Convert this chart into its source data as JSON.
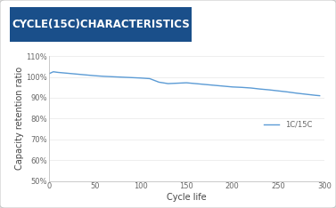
{
  "title": "CYCLE(15C)CHARACTERISTICS",
  "title_bg_color": "#1a4f8a",
  "title_text_color": "#ffffff",
  "xlabel": "Cycle life",
  "ylabel": "Capacity retention ratio",
  "xlim": [
    0,
    300
  ],
  "ylim": [
    0.5,
    1.1
  ],
  "yticks": [
    0.5,
    0.6,
    0.7,
    0.8,
    0.9,
    1.0,
    1.1
  ],
  "ytick_labels": [
    "50%",
    "60%",
    "70%",
    "80%",
    "90%",
    "100%",
    "110%"
  ],
  "xticks": [
    0,
    50,
    100,
    150,
    200,
    250,
    300
  ],
  "line_color": "#5b9bd5",
  "line_label": "1C/15C",
  "x_data": [
    0,
    5,
    10,
    15,
    20,
    30,
    40,
    50,
    60,
    70,
    80,
    90,
    100,
    110,
    120,
    130,
    140,
    150,
    160,
    170,
    180,
    190,
    200,
    210,
    220,
    230,
    240,
    250,
    260,
    270,
    280,
    290,
    295
  ],
  "y_data": [
    1.015,
    1.025,
    1.022,
    1.02,
    1.018,
    1.014,
    1.01,
    1.006,
    1.003,
    1.001,
    0.999,
    0.997,
    0.995,
    0.992,
    0.975,
    0.968,
    0.97,
    0.972,
    0.968,
    0.964,
    0.96,
    0.956,
    0.952,
    0.95,
    0.947,
    0.942,
    0.938,
    0.933,
    0.928,
    0.922,
    0.917,
    0.912,
    0.91
  ],
  "outer_bg": "#e0e0e0",
  "card_bg": "#ffffff",
  "card_edge": "#c8c8c8",
  "font_size_title": 8.5,
  "font_size_axis_label": 7,
  "font_size_tick": 6,
  "font_size_legend": 6
}
